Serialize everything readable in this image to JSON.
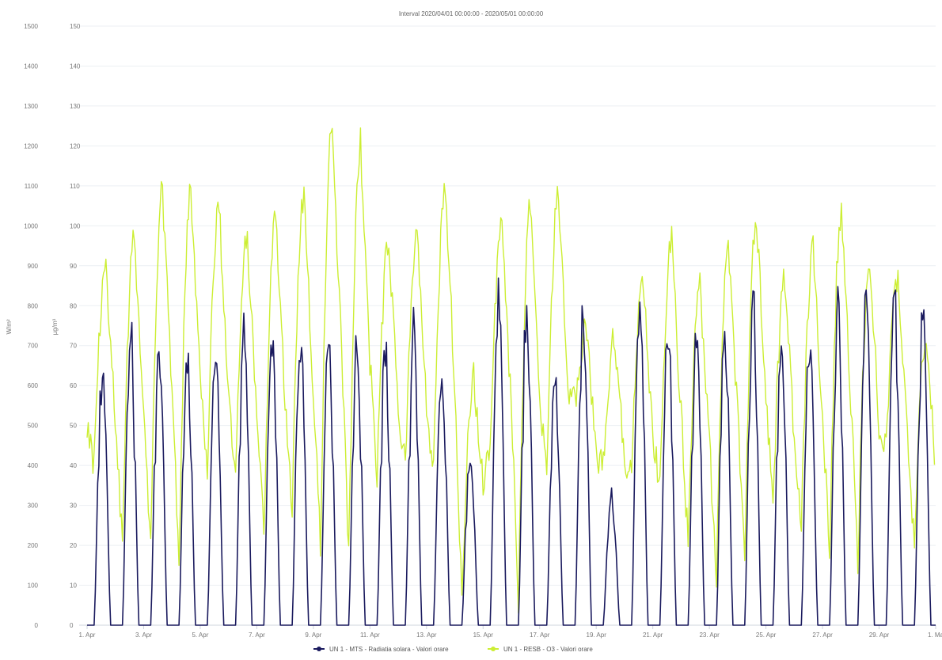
{
  "chart_data": {
    "type": "line",
    "title": "Interval 2020/04/01 00:00:00 - 2020/05/01 00:00:00",
    "y_left": {
      "label": "W/m²",
      "lim": [
        0,
        1500
      ],
      "ticks": [
        0,
        100,
        200,
        300,
        400,
        500,
        600,
        700,
        800,
        900,
        1000,
        1100,
        1200,
        1300,
        1400,
        1500
      ]
    },
    "y_right": {
      "label": "µg/m³",
      "lim": [
        0,
        150
      ],
      "ticks": [
        0,
        10,
        20,
        30,
        40,
        50,
        60,
        70,
        80,
        90,
        100,
        110,
        120,
        130,
        140,
        150
      ]
    },
    "x_ticks": [
      "1. Apr",
      "3. Apr",
      "5. Apr",
      "7. Apr",
      "9. Apr",
      "11. Apr",
      "13. Apr",
      "15. Apr",
      "17. Apr",
      "19. Apr",
      "21. Apr",
      "23. Apr",
      "25. Apr",
      "27. Apr",
      "29. Apr",
      "1. Ma"
    ],
    "x_range_days": [
      0,
      30
    ],
    "grid": true,
    "legend_position": "bottom-center",
    "series": [
      {
        "name": "UN 1 - MTS - Radiatia solara - Valori orare",
        "color": "#1a1a5e",
        "axis": "left",
        "daily_peaks": [
          690,
          790,
          770,
          740,
          720,
          820,
          810,
          800,
          770,
          770,
          760,
          800,
          700,
          460,
          880,
          860,
          660,
          840,
          350,
          900,
          800,
          820,
          820,
          880,
          810,
          750,
          860,
          870,
          870,
          820
        ]
      },
      {
        "name": "UN 1 - RESB - O3 - Valori orare",
        "color": "#ccee33",
        "axis": "right",
        "daily_highs": [
          90,
          98,
          109,
          110,
          105,
          97,
          103,
          107,
          125,
          121,
          97,
          98,
          109,
          62,
          99,
          104,
          108,
          74,
          72,
          86,
          96,
          85,
          95,
          103,
          86,
          94,
          103,
          92,
          88,
          72
        ],
        "daily_lows": [
          40,
          22,
          20,
          17,
          38,
          36,
          22,
          30,
          19,
          18,
          36,
          40,
          40,
          5,
          45,
          5,
          40,
          55,
          40,
          40,
          35,
          20,
          10,
          15,
          30,
          25,
          20,
          15,
          45,
          20
        ]
      }
    ]
  }
}
